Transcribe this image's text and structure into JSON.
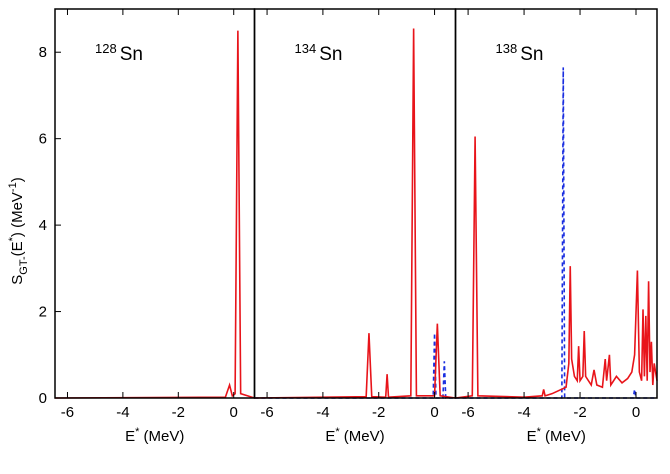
{
  "chart_data": [
    {
      "type": "line",
      "title": {
        "mass": "128",
        "element": "Sn"
      },
      "ylabel": {
        "s": "S",
        "sub": "GT-",
        "open": "(E",
        "star": "*",
        "mid": ") (MeV",
        "exp": "-1",
        "close": ")"
      },
      "xlabel": {
        "e": "E",
        "star": "*",
        "unit": " (MeV)"
      },
      "xlim": [
        -6.45,
        0.75
      ],
      "xticks": [
        -6,
        -4,
        -2,
        0
      ],
      "ylim": [
        0,
        9
      ],
      "yticks": [
        0,
        2,
        4,
        6,
        8
      ],
      "series": [
        {
          "color": "#e8141a",
          "dash": false,
          "x": [
            -6.45,
            -0.3,
            -0.15,
            -0.05,
            0.05,
            0.15,
            0.25,
            0.75
          ],
          "values": [
            0,
            0.02,
            0.3,
            0.05,
            0.1,
            8.5,
            0.1,
            0
          ]
        }
      ]
    },
    {
      "type": "line",
      "title": {
        "mass": "134",
        "element": "Sn"
      },
      "xlabel": {
        "e": "E",
        "star": "*",
        "unit": " (MeV)"
      },
      "xlim": [
        -6.45,
        0.75
      ],
      "xticks": [
        -6,
        -4,
        -2,
        0
      ],
      "ylim": [
        0,
        9
      ],
      "series": [
        {
          "color": "#1a2ee0",
          "dash": true,
          "x": [
            -6.45,
            -0.05,
            0.0,
            0.05,
            0.3,
            0.35,
            0.4,
            0.75
          ],
          "values": [
            0,
            0,
            1.5,
            0,
            0,
            0.85,
            0,
            0
          ]
        },
        {
          "color": "#e8141a",
          "dash": false,
          "x": [
            -6.45,
            -2.45,
            -2.35,
            -2.25,
            -1.75,
            -1.7,
            -1.65,
            -0.85,
            -0.75,
            -0.65,
            0.0,
            0.1,
            0.2,
            0.75
          ],
          "values": [
            0,
            0.03,
            1.5,
            0.03,
            0.02,
            0.55,
            0.02,
            0.05,
            8.55,
            0.05,
            0.05,
            1.72,
            0.05,
            0
          ]
        }
      ]
    },
    {
      "type": "line",
      "title": {
        "mass": "138",
        "element": "Sn"
      },
      "xlabel": {
        "e": "E",
        "star": "*",
        "unit": " (MeV)"
      },
      "xlim": [
        -6.45,
        0.75
      ],
      "xticks": [
        -6,
        -4,
        -2,
        0
      ],
      "ylim": [
        0,
        9
      ],
      "series": [
        {
          "color": "#1a2ee0",
          "dash": true,
          "x": [
            -6.45,
            -2.65,
            -2.6,
            -2.55,
            -0.1,
            -0.05,
            0.0,
            0.75
          ],
          "values": [
            0,
            0,
            7.65,
            0,
            0,
            0.2,
            0,
            0
          ]
        },
        {
          "color": "#e8141a",
          "dash": false,
          "x": [
            -6.45,
            -5.85,
            -5.75,
            -5.65,
            -4,
            -3.35,
            -3.3,
            -3.25,
            -3.0,
            -2.5,
            -2.4,
            -2.35,
            -2.3,
            -2.2,
            -2.1,
            -2.05,
            -2.0,
            -1.9,
            -1.85,
            -1.8,
            -1.6,
            -1.5,
            -1.4,
            -1.2,
            -1.1,
            -1.05,
            -0.95,
            -0.9,
            -0.7,
            -0.5,
            -0.3,
            -0.15,
            -0.05,
            0.05,
            0.12,
            0.2,
            0.25,
            0.3,
            0.35,
            0.4,
            0.45,
            0.5,
            0.55,
            0.6,
            0.65,
            0.75
          ],
          "values": [
            0,
            0.05,
            6.05,
            0.05,
            0.02,
            0.05,
            0.2,
            0.05,
            0.1,
            0.25,
            0.8,
            3.05,
            0.9,
            0.5,
            0.4,
            1.2,
            0.4,
            0.5,
            1.55,
            0.5,
            0.3,
            0.65,
            0.3,
            0.25,
            0.9,
            0.4,
            1.0,
            0.3,
            0.5,
            0.35,
            0.45,
            0.6,
            1.0,
            2.95,
            0.6,
            0.4,
            2.05,
            0.5,
            1.9,
            0.4,
            2.7,
            0.6,
            1.3,
            0.3,
            0.8,
            0.4
          ]
        }
      ]
    }
  ]
}
